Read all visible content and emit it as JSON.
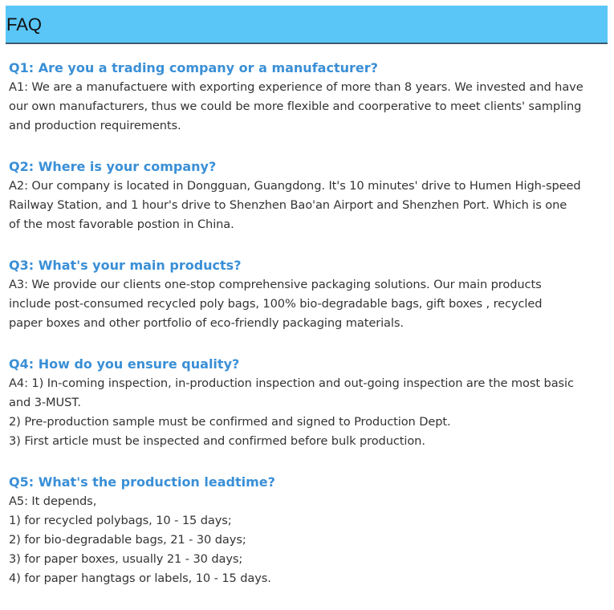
{
  "header": {
    "title": "FAQ",
    "color": "#5ac6f8"
  },
  "question_color": "#3a8fd6",
  "items": [
    {
      "q": "Q1: Are you a trading company or a manufacturer?",
      "a": [
        "A1: We are a manufactuere with exporting experience of more than 8 years. We invested and have",
        "our own manufacturers, thus we could be more flexible and coorperative to meet clients' sampling",
        "and production requirements."
      ]
    },
    {
      "q": "Q2: Where is your company?",
      "a": [
        "A2: Our company is located in Dongguan, Guangdong. It's 10 minutes' drive to Humen High-speed",
        "Railway Station, and 1 hour's drive to Shenzhen Bao'an Airport and Shenzhen Port. Which is one",
        "of the most favorable postion in China."
      ]
    },
    {
      "q": "Q3: What's your main products?",
      "a": [
        "A3: We provide our clients one-stop comprehensive packaging solutions. Our main products",
        "include post-consumed recycled poly bags, 100% bio-degradable bags, gift boxes , recycled",
        "paper boxes and other portfolio of eco-friendly packaging materials."
      ]
    },
    {
      "q": "Q4: How do you ensure quality?",
      "a": [
        "A4: 1) In-coming inspection, in-production inspection and out-going inspection are the most basic",
        "and 3-MUST.",
        "2) Pre-production sample must be confirmed and signed to Production Dept.",
        "3) First article must be inspected and confirmed before bulk production."
      ]
    },
    {
      "q": "Q5: What's the production leadtime?",
      "a": [
        "A5: It depends,",
        "1) for recycled polybags, 10 - 15 days;",
        "2) for bio-degradable bags, 21 - 30 days;",
        "3) for paper boxes, usually 21 - 30 days;",
        "4) for paper hangtags or labels, 10 - 15 days."
      ]
    }
  ]
}
